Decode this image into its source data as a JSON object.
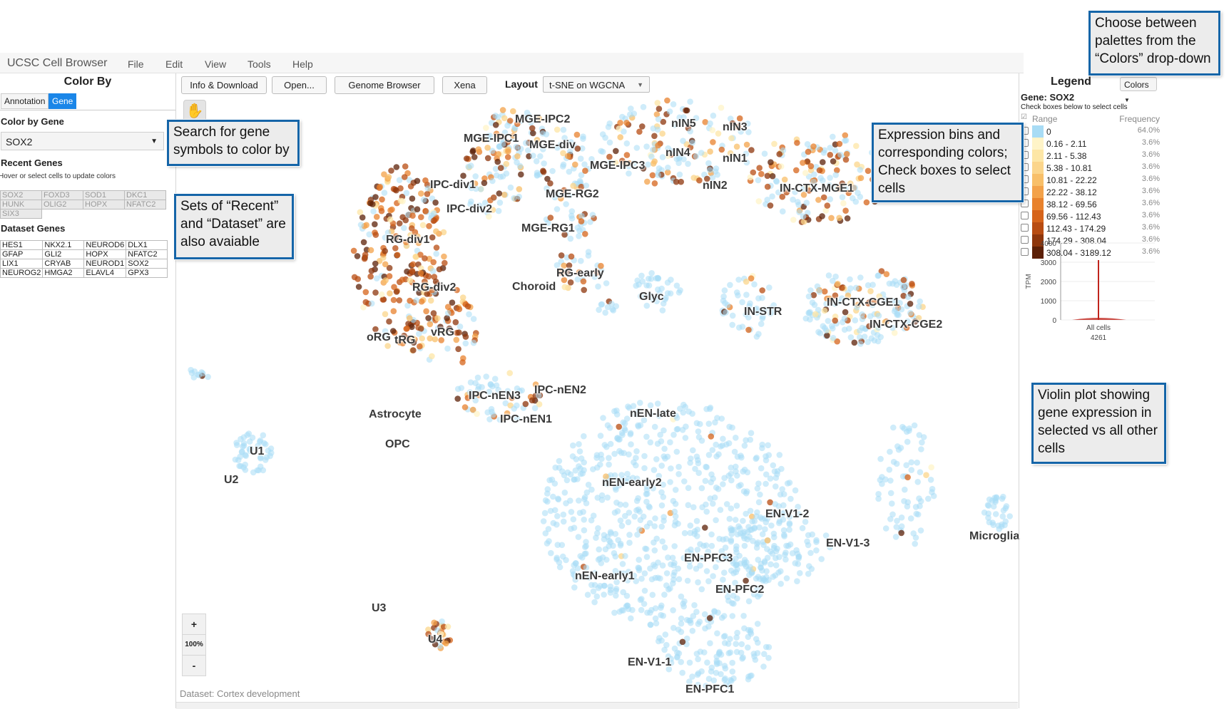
{
  "menubar": {
    "app_title": "UCSC Cell Browser",
    "items": [
      "File",
      "Edit",
      "View",
      "Tools",
      "Help"
    ]
  },
  "left_panel": {
    "title": "Color By",
    "tabs": [
      {
        "label": "Annotation",
        "active": false
      },
      {
        "label": "Gene",
        "active": true
      }
    ],
    "color_by_gene_label": "Color by Gene",
    "gene_select_value": "SOX2",
    "recent_genes_label": "Recent Genes",
    "recent_hint": "Hover or select cells to update colors",
    "recent_genes": [
      [
        "SOX2",
        "FOXD3",
        "SOD1",
        "DKC1"
      ],
      [
        "HUNK",
        "OLIG2",
        "HOPX",
        "NFATC2"
      ],
      [
        "SIX3",
        "",
        "",
        ""
      ]
    ],
    "dataset_genes_label": "Dataset Genes",
    "dataset_genes": [
      [
        "HES1",
        "NKX2.1",
        "NEUROD6",
        "DLX1"
      ],
      [
        "GFAP",
        "GLI2",
        "HOPX",
        "NFATC2"
      ],
      [
        "LIX1",
        "CRYAB",
        "NEUROD1",
        "SOX2"
      ],
      [
        "NEUROG2",
        "HMGA2",
        "ELAVL4",
        "GPX3"
      ]
    ]
  },
  "toolbar": {
    "info_download": "Info & Download",
    "open": "Open...",
    "genome_browser": "Genome Browser",
    "xena": "Xena",
    "layout_label": "Layout",
    "layout_value": "t-SNE on WGCNA"
  },
  "plot": {
    "zoom_in": "+",
    "zoom_level": "100%",
    "zoom_out": "-",
    "dataset_note": "Dataset: Cortex development",
    "cluster_labels": [
      "MGE-IPC2",
      "MGE-IPC1",
      "MGE-div",
      "MGE-IPC3",
      "MGE-RG2",
      "MGE-RG1",
      "IPC-div1",
      "IPC-div2",
      "RG-div1",
      "RG-div2",
      "RG-early",
      "Choroid",
      "Glyc",
      "oRG",
      "tRG",
      "vRG",
      "nIN5",
      "nIN3",
      "nIN4",
      "nIN1",
      "nIN2",
      "IN-CTX-MGE1",
      "IN-STR",
      "IN-CTX-CGE1",
      "IN-CTX-CGE2",
      "IPC-nEN3",
      "IPC-nEN2",
      "IPC-nEN1",
      "nEN-late",
      "Astrocyte",
      "OPC",
      "U1",
      "U2",
      "U3",
      "U4",
      "nEN-early2",
      "EN-V1-2",
      "EN-V1-3",
      "Microglia",
      "EN-PFC3",
      "EN-PFC2",
      "nEN-early1",
      "EN-V1-1",
      "EN-PFC1"
    ]
  },
  "legend": {
    "title": "Legend",
    "colors_button": "Colors",
    "gene_label": "Gene: SOX2",
    "hint": "Check boxes below to select cells",
    "range_header": "Range",
    "frequency_header": "Frequency",
    "bins": [
      {
        "range": "0",
        "freq": "64.0%",
        "color": "#a8dcf5"
      },
      {
        "range": "0.16 - 2.11",
        "freq": "3.6%",
        "color": "#fff4c8"
      },
      {
        "range": "2.11 - 5.38",
        "freq": "3.6%",
        "color": "#fde6a6"
      },
      {
        "range": "5.38 - 10.81",
        "freq": "3.6%",
        "color": "#fbd58b"
      },
      {
        "range": "10.81 - 22.22",
        "freq": "3.6%",
        "color": "#f8bf69"
      },
      {
        "range": "22.22 - 38.12",
        "freq": "3.6%",
        "color": "#f3a24a"
      },
      {
        "range": "38.12 - 69.56",
        "freq": "3.6%",
        "color": "#e8822d"
      },
      {
        "range": "69.56 - 112.43",
        "freq": "3.6%",
        "color": "#d6641b"
      },
      {
        "range": "112.43 - 174.29",
        "freq": "3.6%",
        "color": "#b84c12"
      },
      {
        "range": "174.29 - 308.04",
        "freq": "3.6%",
        "color": "#8e360c"
      },
      {
        "range": "308.04 - 3189.12",
        "freq": "3.6%",
        "color": "#5c2007"
      }
    ],
    "violin": {
      "y_axis_label": "TPM",
      "y_ticks": [
        "4000",
        "3000",
        "2000",
        "1000",
        "0"
      ],
      "x_label": "All cells",
      "count": "4261"
    }
  },
  "callouts": {
    "colors": "Choose between palettes from the “Colors” drop-down",
    "search": "Search for gene symbols to color by",
    "recent": "Sets of “Recent” and “Dataset” are also avaiable",
    "bins": "Expression bins and corresponding colors; Check boxes to select cells",
    "violin": "Violin plot showing gene expression in selected vs all other cells"
  },
  "colors": {
    "accent": "#1a86e8",
    "callout_border": "#1565a8",
    "zero_expression": "#a8dcf5",
    "violin_line": "#c0241c"
  }
}
